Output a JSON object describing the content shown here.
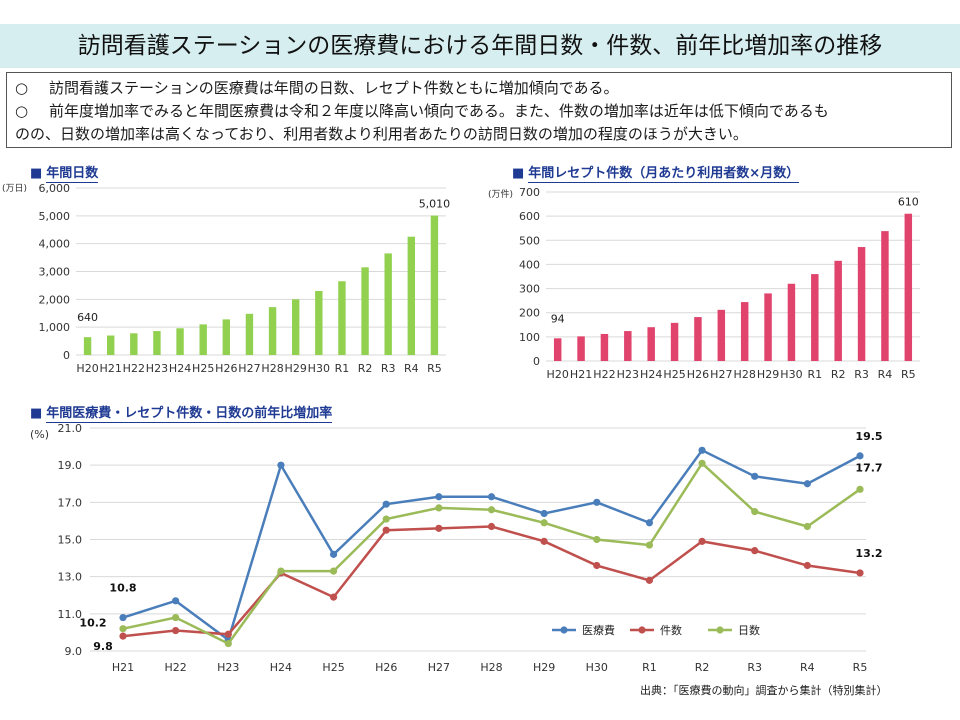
{
  "title": "訪問看護ステーションの医療費における年間日数・件数、前年比増加率の推移",
  "summary": {
    "bullets": [
      {
        "mark": "○",
        "text": "訪問看護ステーションの医療費は年間の日数、レセプト件数ともに増加傾向である。"
      },
      {
        "mark": "○",
        "text": "前年度増加率でみると年間医療費は令和２年度以降高い傾向である。また、件数の増加率は近年は低下傾向であるも"
      }
    ],
    "continuation": "のの、日数の増加率は高くなっており、利用者数より利用者あたりの訪問日数の増加の程度のほうが大きい。"
  },
  "section_marker": "■",
  "source": "出典：「医療費の動向」調査から集計（特別集計）",
  "colors": {
    "green": "#92d050",
    "pink": "#e0446d",
    "blue": "#4a7ebb",
    "red": "#c0504d",
    "lightgreen": "#9bbb59",
    "navy": "#1f3a93"
  },
  "chart_data": [
    {
      "type": "bar",
      "title": "年間日数",
      "ylabel": "(万日)",
      "categories": [
        "H20",
        "H21",
        "H22",
        "H23",
        "H24",
        "H25",
        "H26",
        "H27",
        "H28",
        "H29",
        "H30",
        "R1",
        "R2",
        "R3",
        "R4",
        "R5"
      ],
      "values": [
        640,
        700,
        780,
        860,
        960,
        1100,
        1280,
        1480,
        1720,
        2000,
        2300,
        2650,
        3150,
        3650,
        4250,
        5010
      ],
      "ylim": [
        0,
        6000
      ],
      "yticks": [
        "0",
        "1,000",
        "2,000",
        "3,000",
        "4,000",
        "5,000",
        "6,000"
      ],
      "data_labels": {
        "first": "640",
        "last": "5,010"
      },
      "color": "#92d050"
    },
    {
      "type": "bar",
      "title": "年間レセプト件数（月あたり利用者数×月数）",
      "ylabel": "(万件)",
      "categories": [
        "H20",
        "H21",
        "H22",
        "H23",
        "H24",
        "H25",
        "H26",
        "H27",
        "H28",
        "H29",
        "H30",
        "R1",
        "R2",
        "R3",
        "R4",
        "R5"
      ],
      "values": [
        94,
        102,
        112,
        124,
        140,
        158,
        182,
        212,
        244,
        280,
        320,
        360,
        415,
        472,
        538,
        610
      ],
      "ylim": [
        0,
        700
      ],
      "yticks": [
        "0",
        "100",
        "200",
        "300",
        "400",
        "500",
        "600",
        "700"
      ],
      "data_labels": {
        "first": "94",
        "last": "610"
      },
      "color": "#e0446d"
    },
    {
      "type": "line",
      "title": "年間医療費・レセプト件数・日数の前年比増加率",
      "ylabel": "(%)",
      "categories": [
        "H21",
        "H22",
        "H23",
        "H24",
        "H25",
        "H26",
        "H27",
        "H28",
        "H29",
        "H30",
        "R1",
        "R2",
        "R3",
        "R4",
        "R5"
      ],
      "ylim": [
        9.0,
        21.0
      ],
      "yticks": [
        "9.0",
        "11.0",
        "13.0",
        "15.0",
        "17.0",
        "19.0",
        "21.0"
      ],
      "series": [
        {
          "name": "医療費",
          "color": "#4a7ebb",
          "values": [
            10.8,
            11.7,
            9.6,
            19.0,
            14.2,
            16.9,
            17.3,
            17.3,
            16.4,
            17.0,
            15.9,
            19.8,
            18.4,
            18.0,
            19.5
          ]
        },
        {
          "name": "件数",
          "color": "#c0504d",
          "values": [
            9.8,
            10.1,
            9.9,
            13.2,
            11.9,
            15.5,
            15.6,
            15.7,
            14.9,
            13.6,
            12.8,
            14.9,
            14.4,
            13.6,
            13.2
          ]
        },
        {
          "name": "日数",
          "color": "#9bbb59",
          "values": [
            10.2,
            10.8,
            9.4,
            13.3,
            13.3,
            16.1,
            16.7,
            16.6,
            15.9,
            15.0,
            14.7,
            19.1,
            16.5,
            15.7,
            17.7
          ]
        }
      ],
      "data_labels": {
        "start": [
          "10.8",
          "9.8",
          "10.2"
        ],
        "end": [
          "19.5",
          "13.2",
          "17.7"
        ]
      },
      "legend_position": "bottom-right"
    }
  ]
}
